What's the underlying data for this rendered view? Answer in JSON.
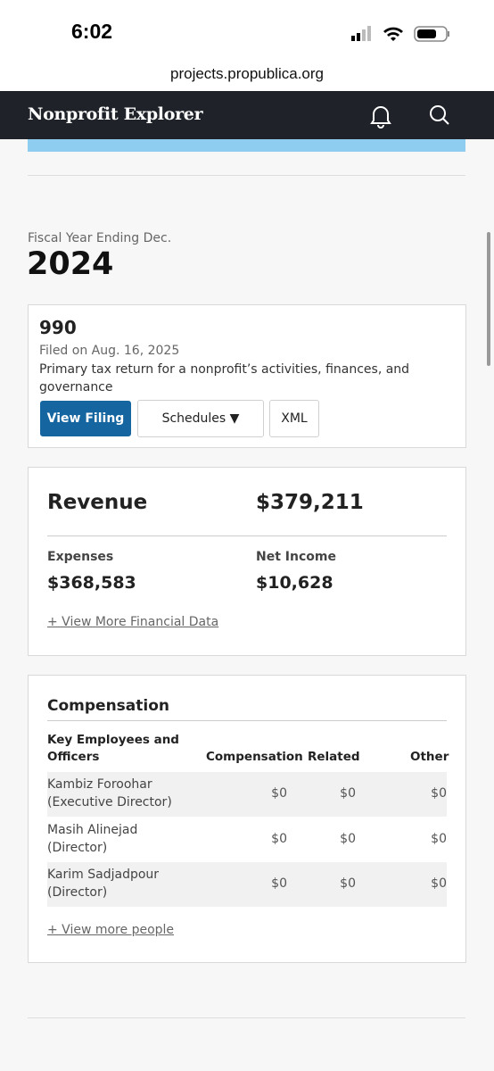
{
  "status_bar": {
    "time": "6:02"
  },
  "url": "projects.propublica.org",
  "header": {
    "title": "Nonprofit Explorer"
  },
  "fiscal": {
    "label": "Fiscal Year Ending Dec.",
    "year": "2024"
  },
  "filing": {
    "form": "990",
    "filed": "Filed on Aug. 16, 2025",
    "description": "Primary tax return for a nonprofit’s activities, finances, and governance",
    "buttons": [
      "View Filing",
      "Schedules ▼",
      "XML"
    ]
  },
  "financials": {
    "revenue_label": "Revenue",
    "revenue": "$379,211",
    "expenses_label": "Expenses",
    "expenses": "$368,583",
    "net_income_label": "Net Income",
    "net_income": "$10,628",
    "more_link": "+ View More Financial Data"
  },
  "compensation": {
    "title": "Compensation",
    "columns": [
      "Key Employees and Officers",
      "Compensation",
      "Related",
      "Other"
    ],
    "rows": [
      [
        "Kambiz Foroohar",
        "(Executive Director)",
        "$0",
        "$0",
        "$0"
      ],
      [
        "Masih Alinejad",
        "(Director)",
        "$0",
        "$0",
        "$0"
      ],
      [
        "Karim Sadjadpour",
        "(Director)",
        "$0",
        "$0",
        "$0"
      ]
    ],
    "more_link": "+ View more people"
  }
}
